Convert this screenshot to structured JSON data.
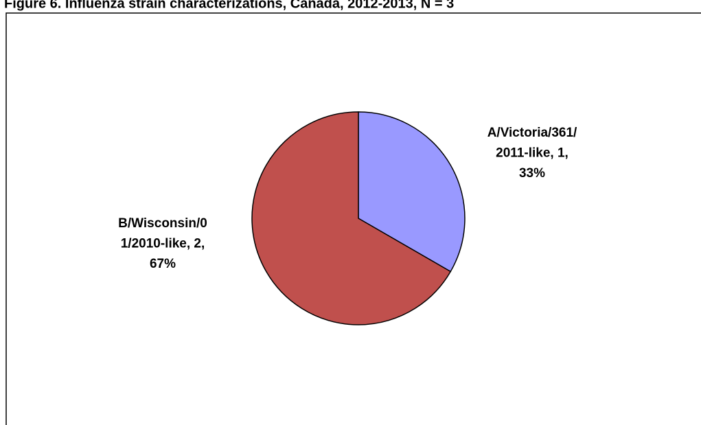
{
  "chart_data": {
    "type": "pie",
    "title": "Figure 6. Influenza strain characterizations, Canada, 2012-2013, N = 3",
    "categories": [
      "A/Victoria/361/2011-like",
      "B/Wisconsin/01/2010-like"
    ],
    "values": [
      1,
      2
    ],
    "value_labels": [
      [
        "A/Victoria/361/",
        "2011-like, 1,",
        "33%"
      ],
      [
        "B/Wisconsin/0",
        "1/2010-like, 2,",
        "67%"
      ]
    ],
    "colors": [
      "#9999ff",
      "#c0504d"
    ]
  }
}
